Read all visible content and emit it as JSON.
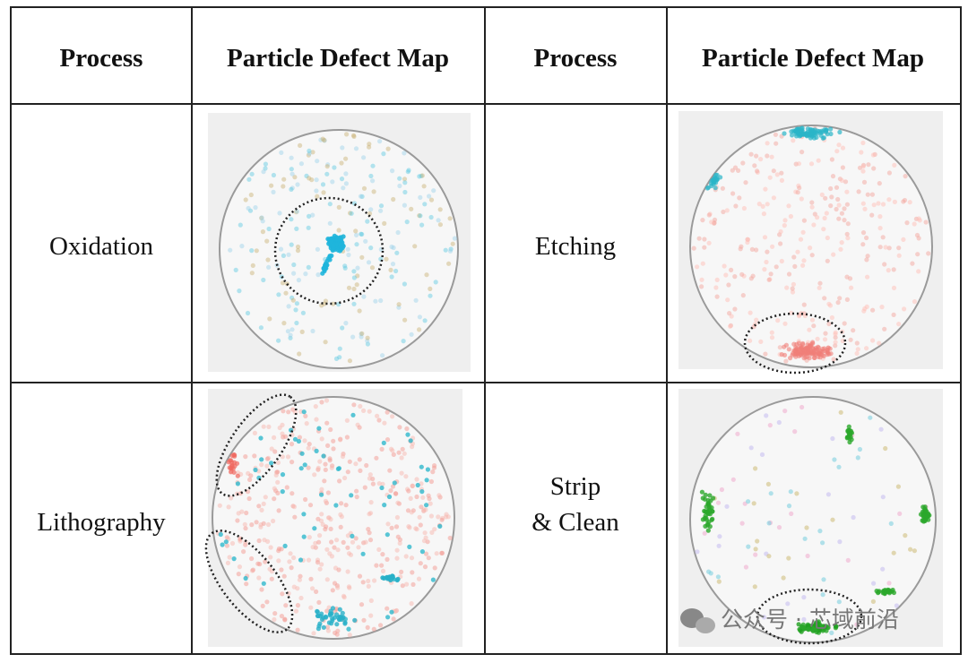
{
  "table": {
    "header": [
      "Process",
      "Particle Defect Map",
      "Process",
      "Particle Defect Map"
    ],
    "rows": [
      {
        "left": "Oxidation",
        "right": [
          "Etching"
        ]
      },
      {
        "left": "Lithography",
        "right": [
          "Strip",
          "& Clean"
        ]
      }
    ]
  },
  "watermark": "公众号 · 芯域前沿"
}
